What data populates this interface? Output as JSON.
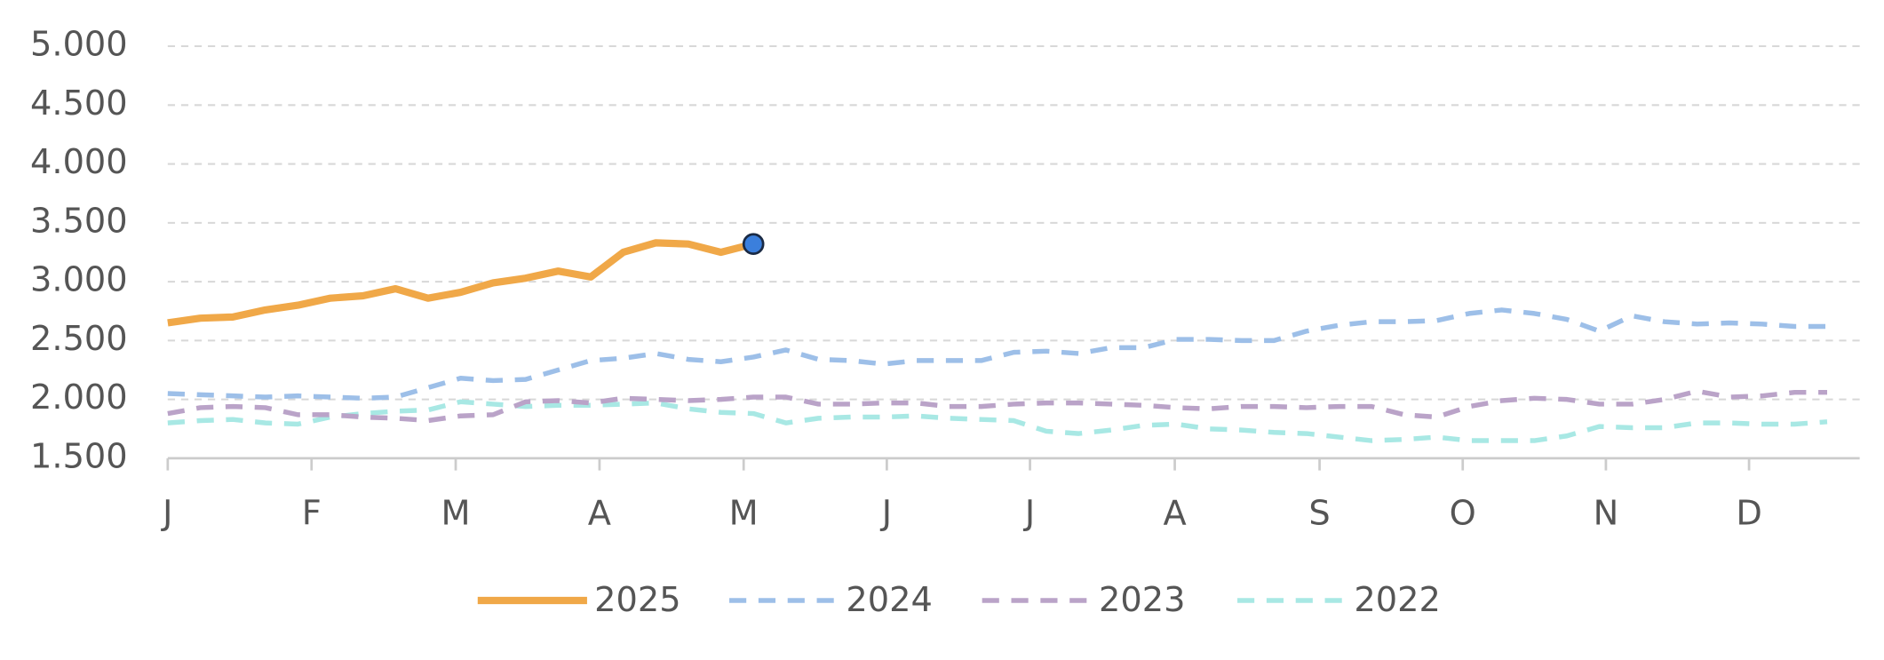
{
  "chart_data": {
    "type": "line",
    "x": [
      1,
      2,
      3,
      4,
      5,
      6,
      7,
      8,
      9,
      10,
      11,
      12,
      13,
      14,
      15,
      16,
      17,
      18,
      19,
      20,
      21,
      22,
      23,
      24,
      25,
      26,
      27,
      28,
      29,
      30,
      31,
      32,
      33,
      34,
      35,
      36,
      37,
      38,
      39,
      40,
      41,
      42,
      43,
      44,
      45,
      46,
      47,
      48,
      49,
      50,
      51,
      52
    ],
    "xlim": [
      1,
      53
    ],
    "xticks": [
      {
        "value": 1,
        "label": "J"
      },
      {
        "value": 5.42,
        "label": "F"
      },
      {
        "value": 9.85,
        "label": "M"
      },
      {
        "value": 14.27,
        "label": "A"
      },
      {
        "value": 18.7,
        "label": "M"
      },
      {
        "value": 23.1,
        "label": "J"
      },
      {
        "value": 27.5,
        "label": "J"
      },
      {
        "value": 31.95,
        "label": "A"
      },
      {
        "value": 36.4,
        "label": "S"
      },
      {
        "value": 40.8,
        "label": "O"
      },
      {
        "value": 45.2,
        "label": "N"
      },
      {
        "value": 49.6,
        "label": "D"
      }
    ],
    "ylim": [
      1500,
      5000
    ],
    "yticks": [
      {
        "value": 1500,
        "label": "1.500"
      },
      {
        "value": 2000,
        "label": "2.000"
      },
      {
        "value": 2500,
        "label": "2.500"
      },
      {
        "value": 3000,
        "label": "3.000"
      },
      {
        "value": 3500,
        "label": "3.500"
      },
      {
        "value": 4000,
        "label": "4.000"
      },
      {
        "value": 4500,
        "label": "4.500"
      },
      {
        "value": 5000,
        "label": "5.000"
      }
    ],
    "grid": true,
    "legend": "bottom",
    "marker_color": "#3b7fdc",
    "series": [
      {
        "name": "2025",
        "color": "#f0a848",
        "dashed": false,
        "values": [
          2650,
          2690,
          2700,
          2760,
          2800,
          2860,
          2880,
          2940,
          2860,
          2910,
          2990,
          3030,
          3090,
          3040,
          3250,
          3330,
          3320,
          3250,
          3320,
          null,
          null,
          null,
          null,
          null,
          null,
          null,
          null,
          null,
          null,
          null,
          null,
          null,
          null,
          null,
          null,
          null,
          null,
          null,
          null,
          null,
          null,
          null,
          null,
          null,
          null,
          null,
          null,
          null,
          null,
          null,
          null,
          null
        ]
      },
      {
        "name": "2024",
        "color": "#9dbfe8",
        "dashed": true,
        "values": [
          2050,
          2040,
          2030,
          2020,
          2030,
          2020,
          2010,
          2020,
          2100,
          2180,
          2160,
          2170,
          2250,
          2330,
          2350,
          2390,
          2340,
          2320,
          2360,
          2420,
          2340,
          2330,
          2300,
          2330,
          2330,
          2330,
          2400,
          2410,
          2390,
          2440,
          2440,
          2510,
          2510,
          2500,
          2500,
          2580,
          2630,
          2660,
          2660,
          2670,
          2730,
          2760,
          2730,
          2680,
          2580,
          2710,
          2660,
          2640,
          2650,
          2640,
          2620,
          2620
        ]
      },
      {
        "name": "2023",
        "color": "#baa3c8",
        "dashed": true,
        "values": [
          1880,
          1930,
          1940,
          1930,
          1870,
          1870,
          1850,
          1840,
          1820,
          1860,
          1870,
          1980,
          1990,
          1970,
          2010,
          2000,
          1990,
          2000,
          2020,
          2020,
          1960,
          1960,
          1970,
          1970,
          1940,
          1940,
          1960,
          1970,
          1970,
          1960,
          1950,
          1930,
          1920,
          1940,
          1940,
          1930,
          1940,
          1940,
          1870,
          1850,
          1940,
          1990,
          2010,
          2000,
          1960,
          1960,
          2000,
          2070,
          2020,
          2030,
          2060,
          2060
        ]
      },
      {
        "name": "2022",
        "color": "#a8e8e4",
        "dashed": true,
        "values": [
          1800,
          1820,
          1830,
          1800,
          1790,
          1850,
          1880,
          1900,
          1910,
          1980,
          1960,
          1940,
          1950,
          1950,
          1960,
          1970,
          1920,
          1890,
          1880,
          1800,
          1840,
          1850,
          1850,
          1860,
          1840,
          1830,
          1820,
          1730,
          1710,
          1740,
          1780,
          1790,
          1750,
          1740,
          1720,
          1710,
          1680,
          1650,
          1660,
          1680,
          1650,
          1650,
          1650,
          1690,
          1770,
          1760,
          1760,
          1800,
          1800,
          1790,
          1790,
          1810
        ]
      }
    ]
  }
}
